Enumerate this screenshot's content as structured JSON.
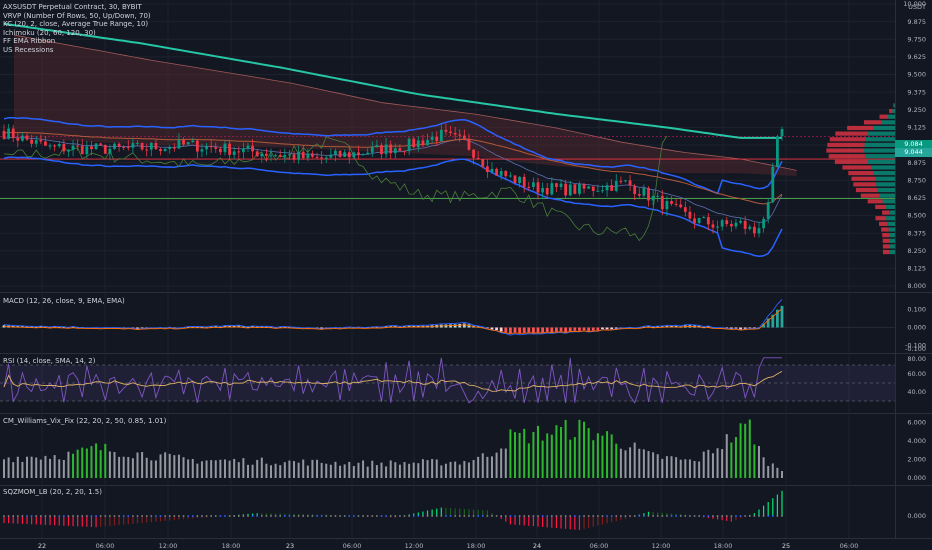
{
  "main_legend": [
    "AXSUSDT Perpetual Contract, 30, BYBIT",
    "VRVP (Number Of Rows, 50, Up/Down, 70)",
    "KC (20, 2, close, Average True Range, 10)",
    "Ichimoku (20, 60, 120, 30)",
    "FF EMA Ribbon",
    "US Recessions"
  ],
  "currency": "USDT",
  "price_axis": [
    "10.000",
    "9.875",
    "9.750",
    "9.625",
    "9.500",
    "9.375",
    "9.250",
    "9.125",
    "9.000",
    "8.875",
    "8.750",
    "8.625",
    "8.500",
    "8.375",
    "8.250",
    "8.125",
    "8.000"
  ],
  "price_labels": [
    "9.084",
    "9.044"
  ],
  "macd": {
    "legend": "MACD (12, 26, close, 9, EMA, EMA)",
    "axis": [
      "0.100",
      "0.000",
      "-0.100"
    ]
  },
  "rsi": {
    "legend": "RSI (14, close, SMA, 14, 2)",
    "axis": [
      "80.00",
      "60.00",
      "40.00"
    ]
  },
  "vix": {
    "legend": "CM_Williams_Vix_Fix (22, 20, 2, 50, 0.85, 1.01)",
    "axis": [
      "6.000",
      "4.000",
      "2.000",
      "0.000"
    ]
  },
  "sqz": {
    "legend": "SQZMOM_LB (20, 2, 20, 1.5)",
    "axis": [
      "0.000"
    ]
  },
  "time_axis": [
    "22",
    "06:00",
    "12:00",
    "18:00",
    "23",
    "06:00",
    "12:00",
    "18:00",
    "24",
    "06:00",
    "12:00",
    "18:00",
    "25",
    "06:00"
  ],
  "colors": {
    "bg": "#131722",
    "up": "#089981",
    "down": "#f23645",
    "keltner": "#2962ff",
    "ema": "#26c6a6",
    "cloud": "#5a2a2e"
  }
}
